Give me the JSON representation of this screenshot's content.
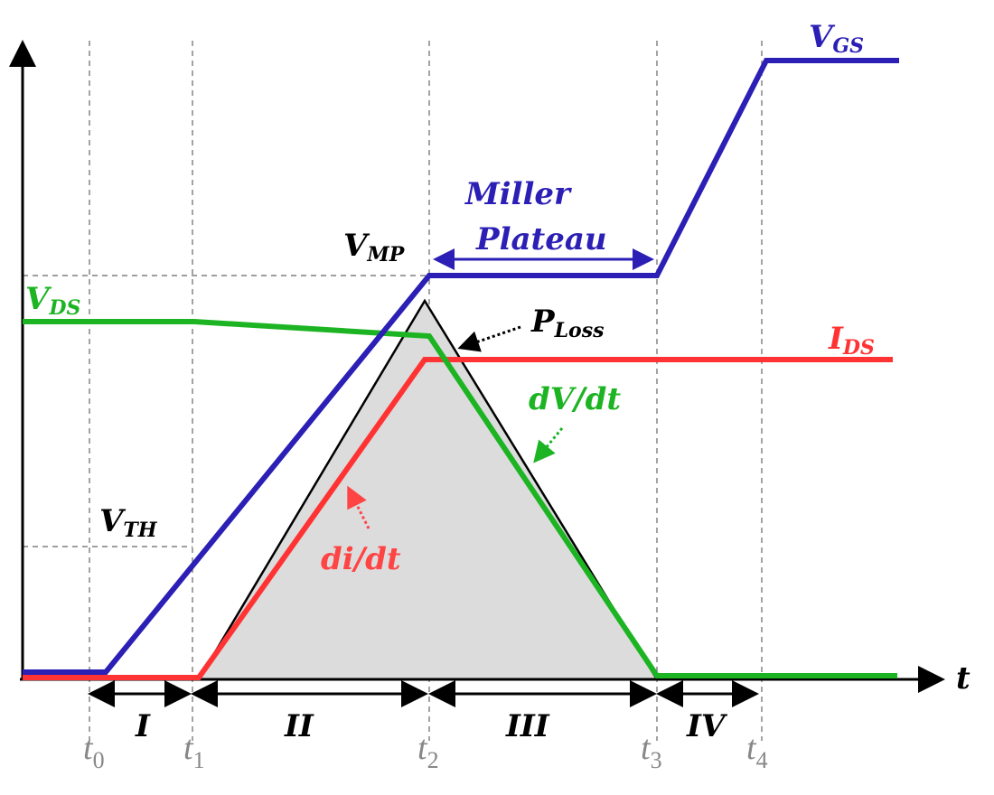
{
  "axis": {
    "time_label": "t"
  },
  "signals": {
    "vgs": {
      "main": "V",
      "sub": "GS"
    },
    "vds": {
      "main": "V",
      "sub": "DS"
    },
    "ids": {
      "main": "I",
      "sub": "DS"
    }
  },
  "levels": {
    "vmp": {
      "main": "V",
      "sub": "MP"
    },
    "vth": {
      "main": "V",
      "sub": "TH"
    }
  },
  "annotations": {
    "miller": [
      "Miller",
      "Plateau"
    ],
    "loss": {
      "main": "P",
      "sub": "Loss"
    },
    "dvdt": "dV/dt",
    "didt": "di/dt"
  },
  "intervals": [
    "I",
    "II",
    "III",
    "IV"
  ],
  "time_marks": [
    {
      "main": "t",
      "sub": "0"
    },
    {
      "main": "t",
      "sub": "1"
    },
    {
      "main": "t",
      "sub": "2"
    },
    {
      "main": "t",
      "sub": "3"
    },
    {
      "main": "t",
      "sub": "4"
    }
  ]
}
